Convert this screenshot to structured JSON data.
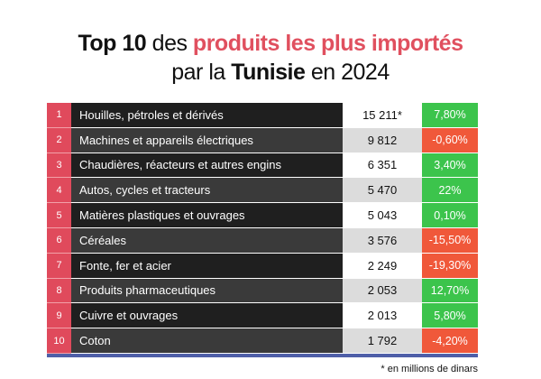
{
  "title": {
    "part1": "Top 10",
    "part2": " des ",
    "part3": "produits les plus importés",
    "part4": "par la ",
    "part5": "Tunisie",
    "part6": " en 2024"
  },
  "footnote": "* en millions de dinars",
  "colors": {
    "rank_bg": "#e04a5c",
    "positive": "#3cc44c",
    "negative": "#f0583a",
    "bottom_bar": "#4f5fa8"
  },
  "chart_data": {
    "type": "table",
    "title": "Top 10 des produits les plus importés par la Tunisie en 2024",
    "rows": [
      {
        "rank": "1",
        "product": "Houilles, pétroles et dérivés",
        "value": "15 211*",
        "variation": "7,80%",
        "trend": "pos"
      },
      {
        "rank": "2",
        "product": "Machines et appareils électriques",
        "value": "9 812",
        "variation": "-0,60%",
        "trend": "neg"
      },
      {
        "rank": "3",
        "product": "Chaudières, réacteurs et autres engins",
        "value": "6 351",
        "variation": "3,40%",
        "trend": "pos"
      },
      {
        "rank": "4",
        "product": "Autos, cycles et tracteurs",
        "value": "5 470",
        "variation": "22%",
        "trend": "pos"
      },
      {
        "rank": "5",
        "product": "Matières plastiques et ouvrages",
        "value": "5 043",
        "variation": "0,10%",
        "trend": "pos"
      },
      {
        "rank": "6",
        "product": "Céréales",
        "value": "3 576",
        "variation": "-15,50%",
        "trend": "neg"
      },
      {
        "rank": "7",
        "product": "Fonte, fer et acier",
        "value": "2 249",
        "variation": "-19,30%",
        "trend": "neg"
      },
      {
        "rank": "8",
        "product": "Produits pharmaceutiques",
        "value": "2 053",
        "variation": "12,70%",
        "trend": "pos"
      },
      {
        "rank": "9",
        "product": "Cuivre et ouvrages",
        "value": "2 013",
        "variation": "5,80%",
        "trend": "pos"
      },
      {
        "rank": "10",
        "product": "Coton",
        "value": "1 792",
        "variation": "-4,20%",
        "trend": "neg"
      }
    ]
  }
}
